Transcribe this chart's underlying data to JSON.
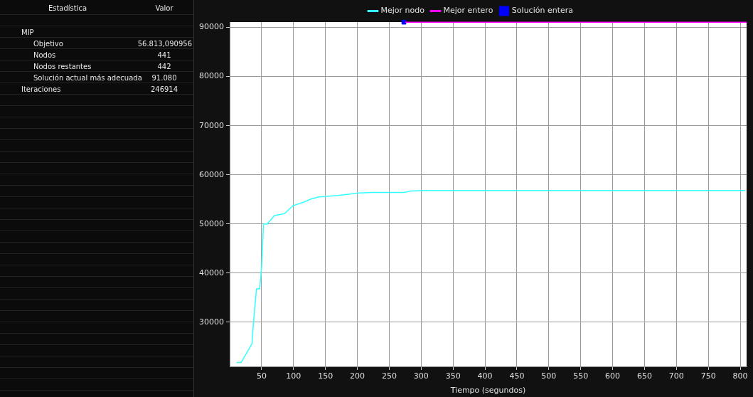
{
  "chart_data": {
    "type": "line",
    "xlabel": "Tiempo (segundos)",
    "xlim": [
      0,
      810
    ],
    "xticks": [
      50,
      100,
      150,
      200,
      250,
      300,
      350,
      400,
      450,
      500,
      550,
      600,
      650,
      700,
      750,
      800
    ],
    "ylim": [
      21000,
      91100
    ],
    "yticks": [
      30000,
      40000,
      50000,
      60000,
      70000,
      80000,
      90000
    ],
    "grid": true,
    "legend": "top",
    "line_style": "solid",
    "marker": "none",
    "series": [
      {
        "name": "Mejor nodo",
        "color": "#33ffff",
        "x": [
          11,
          18,
          35,
          37,
          42,
          47,
          50,
          53,
          59,
          70,
          86,
          99,
          117,
          128,
          140,
          169,
          203,
          221,
          273,
          284,
          305,
          808
        ],
        "values": [
          21800,
          21800,
          25600,
          29500,
          36800,
          36800,
          41100,
          50000,
          50000,
          51700,
          52100,
          53700,
          54500,
          55100,
          55500,
          55800,
          56300,
          56400,
          56400,
          56700,
          56800,
          56800
        ]
      },
      {
        "name": "Mejor entero",
        "color": "#ff00ff",
        "x": [
          275,
          810
        ],
        "values": [
          91080,
          91080
        ]
      },
      {
        "name": "Solución entera",
        "type": "scatter",
        "marker": "square",
        "color": "#0000ff",
        "x": [
          273
        ],
        "values": [
          91080
        ]
      }
    ],
    "annotations": [
      "Estadística",
      "Valor",
      "MIP",
      "Objetivo",
      "56.813,090956",
      "Nodos",
      "441",
      "Nodos restantes",
      "442",
      "Solución actual más adecuada",
      "91.080",
      "Iteraciones",
      "246914"
    ]
  }
}
